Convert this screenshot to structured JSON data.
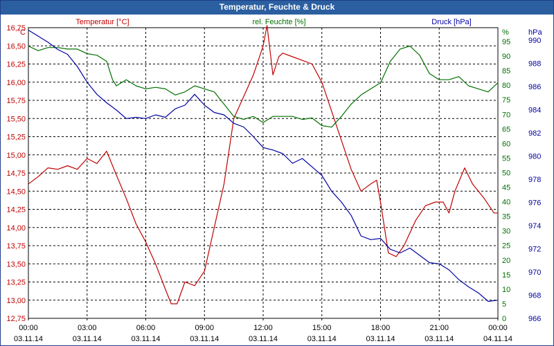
{
  "chart_data": {
    "type": "line",
    "title": "Temperatur, Feuchte & Druck",
    "axes": {
      "temperature": {
        "label": "Temperatur [°C]",
        "unit": "°C",
        "range": [
          12.75,
          16.75
        ],
        "ticks": [
          "16,75",
          "16,50",
          "16,25",
          "16,00",
          "15,75",
          "15,50",
          "15,25",
          "15,00",
          "14,75",
          "14,50",
          "14,25",
          "14,00",
          "13,75",
          "13,50",
          "13,25",
          "13,00",
          "12,75"
        ],
        "color": "#c00000"
      },
      "humidity": {
        "label": "rel. Feuchte [%]",
        "unit": "%",
        "range": [
          0,
          95
        ],
        "ticks": [
          "95",
          "90",
          "85",
          "80",
          "75",
          "70",
          "65",
          "60",
          "55",
          "50",
          "45",
          "40",
          "35",
          "30",
          "25",
          "20",
          "15",
          "10",
          "5",
          "0"
        ],
        "color": "#007000"
      },
      "pressure": {
        "label": "Druck [hPa]",
        "unit": "hPa",
        "range": [
          966,
          990
        ],
        "ticks": [
          "990",
          "988",
          "986",
          "984",
          "982",
          "980",
          "978",
          "976",
          "974",
          "972",
          "970",
          "968",
          "966"
        ],
        "color": "#0000a0"
      }
    },
    "x_ticks": [
      {
        "time": "00:00",
        "date": "03.11.14"
      },
      {
        "time": "03:00",
        "date": "03.11.14"
      },
      {
        "time": "06:00",
        "date": "03.11.14"
      },
      {
        "time": "09:00",
        "date": "03.11.14"
      },
      {
        "time": "12:00",
        "date": "03.11.14"
      },
      {
        "time": "15:00",
        "date": "03.11.14"
      },
      {
        "time": "18:00",
        "date": "03.11.14"
      },
      {
        "time": "21:00",
        "date": "03.11.14"
      },
      {
        "time": "00:00",
        "date": "04.11.14"
      }
    ],
    "x_range_hours": [
      0,
      24
    ],
    "series": [
      {
        "name": "Temperatur",
        "axis": "temperature",
        "color": "#c00000",
        "points": [
          [
            0,
            14.6
          ],
          [
            0.5,
            14.7
          ],
          [
            1,
            14.82
          ],
          [
            1.5,
            14.8
          ],
          [
            2,
            14.85
          ],
          [
            2.5,
            14.8
          ],
          [
            3,
            14.95
          ],
          [
            3.5,
            14.88
          ],
          [
            4,
            15.05
          ],
          [
            4.5,
            14.72
          ],
          [
            5,
            14.4
          ],
          [
            5.5,
            14.05
          ],
          [
            6,
            13.8
          ],
          [
            6.5,
            13.5
          ],
          [
            7,
            13.15
          ],
          [
            7.3,
            12.95
          ],
          [
            7.6,
            12.95
          ],
          [
            8,
            13.25
          ],
          [
            8.5,
            13.2
          ],
          [
            9,
            13.4
          ],
          [
            9.5,
            14.0
          ],
          [
            10,
            14.6
          ],
          [
            10.5,
            15.5
          ],
          [
            11,
            15.8
          ],
          [
            11.5,
            16.1
          ],
          [
            12,
            16.5
          ],
          [
            12.2,
            16.78
          ],
          [
            12.5,
            16.1
          ],
          [
            12.8,
            16.35
          ],
          [
            13,
            16.4
          ],
          [
            13.5,
            16.35
          ],
          [
            14,
            16.3
          ],
          [
            14.5,
            16.25
          ],
          [
            15,
            16.0
          ],
          [
            15.5,
            15.6
          ],
          [
            16,
            15.2
          ],
          [
            16.5,
            14.8
          ],
          [
            17,
            14.5
          ],
          [
            17.5,
            14.6
          ],
          [
            17.8,
            14.65
          ],
          [
            18,
            14.35
          ],
          [
            18.4,
            13.65
          ],
          [
            18.8,
            13.6
          ],
          [
            19.2,
            13.75
          ],
          [
            19.8,
            14.1
          ],
          [
            20.3,
            14.3
          ],
          [
            20.8,
            14.35
          ],
          [
            21.2,
            14.35
          ],
          [
            21.5,
            14.2
          ],
          [
            21.8,
            14.5
          ],
          [
            22.3,
            14.82
          ],
          [
            22.7,
            14.6
          ],
          [
            23.3,
            14.4
          ],
          [
            23.8,
            14.2
          ],
          [
            24,
            14.2
          ]
        ]
      },
      {
        "name": "rel. Feuchte",
        "axis": "humidity",
        "color": "#007000",
        "points": [
          [
            0,
            89
          ],
          [
            0.5,
            87.5
          ],
          [
            1,
            88.5
          ],
          [
            1.5,
            88.5
          ],
          [
            2,
            88
          ],
          [
            2.5,
            88
          ],
          [
            3,
            86.5
          ],
          [
            3.5,
            86
          ],
          [
            4,
            84
          ],
          [
            4.3,
            78
          ],
          [
            4.5,
            76
          ],
          [
            5,
            78
          ],
          [
            5.5,
            76
          ],
          [
            6,
            75
          ],
          [
            6.5,
            75.5
          ],
          [
            7,
            75
          ],
          [
            7.5,
            73
          ],
          [
            8,
            74
          ],
          [
            8.5,
            76
          ],
          [
            9,
            75
          ],
          [
            9.5,
            74
          ],
          [
            10,
            70
          ],
          [
            10.5,
            66
          ],
          [
            11,
            65
          ],
          [
            11.5,
            66
          ],
          [
            12,
            64
          ],
          [
            12.5,
            66
          ],
          [
            13,
            66
          ],
          [
            13.5,
            66
          ],
          [
            14,
            65
          ],
          [
            14.5,
            65.5
          ],
          [
            15,
            63
          ],
          [
            15.5,
            62.5
          ],
          [
            16,
            66
          ],
          [
            16.5,
            70
          ],
          [
            17,
            73
          ],
          [
            17.5,
            75
          ],
          [
            18,
            77
          ],
          [
            18.5,
            84
          ],
          [
            19,
            88
          ],
          [
            19.5,
            89
          ],
          [
            20,
            86
          ],
          [
            20.5,
            80
          ],
          [
            21,
            78
          ],
          [
            21.5,
            78
          ],
          [
            22,
            79
          ],
          [
            22.5,
            76
          ],
          [
            23,
            75
          ],
          [
            23.5,
            74
          ],
          [
            24,
            77
          ]
        ]
      },
      {
        "name": "Druck",
        "axis": "pressure",
        "color": "#0000a0",
        "points": [
          [
            0,
            989.8
          ],
          [
            0.5,
            989.3
          ],
          [
            1,
            988.8
          ],
          [
            1.5,
            988.2
          ],
          [
            2,
            987.8
          ],
          [
            2.5,
            986.8
          ],
          [
            3,
            985.5
          ],
          [
            3.5,
            984.5
          ],
          [
            4,
            983.8
          ],
          [
            4.5,
            983.2
          ],
          [
            5,
            982.5
          ],
          [
            5.5,
            982.6
          ],
          [
            6,
            982.5
          ],
          [
            6.5,
            982.8
          ],
          [
            7,
            982.6
          ],
          [
            7.5,
            983.3
          ],
          [
            8,
            983.6
          ],
          [
            8.5,
            984.5
          ],
          [
            9,
            983.6
          ],
          [
            9.5,
            983.0
          ],
          [
            10,
            982.8
          ],
          [
            10.5,
            982.1
          ],
          [
            11,
            981.8
          ],
          [
            11.5,
            981.0
          ],
          [
            12,
            980.1
          ],
          [
            12.5,
            979.9
          ],
          [
            13,
            979.6
          ],
          [
            13.5,
            978.8
          ],
          [
            14,
            979.2
          ],
          [
            14.5,
            978.5
          ],
          [
            15,
            977.8
          ],
          [
            15.5,
            976.5
          ],
          [
            16,
            975.6
          ],
          [
            16.5,
            974.5
          ],
          [
            17,
            972.8
          ],
          [
            17.5,
            972.5
          ],
          [
            18,
            972.6
          ],
          [
            18.5,
            971.7
          ],
          [
            19,
            971.4
          ],
          [
            19.5,
            971.8
          ],
          [
            20,
            971.2
          ],
          [
            20.5,
            970.6
          ],
          [
            21,
            970.5
          ],
          [
            21.5,
            970.0
          ],
          [
            22,
            969.2
          ],
          [
            22.5,
            968.6
          ],
          [
            23,
            968.1
          ],
          [
            23.5,
            967.4
          ],
          [
            24,
            967.5
          ]
        ]
      }
    ]
  }
}
